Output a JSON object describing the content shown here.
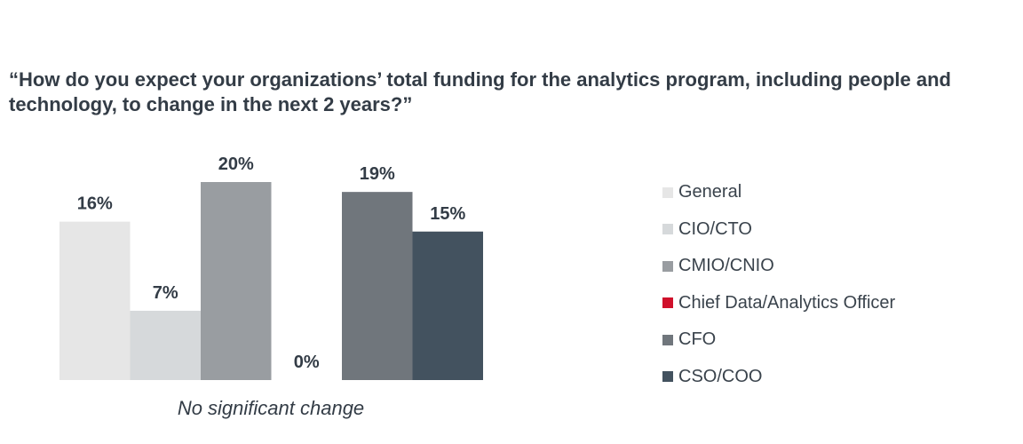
{
  "chart_data": {
    "type": "bar",
    "title": "“How do you expect your organizations’ total funding for the analytics program, including people and technology, to change in the next 2 years?”",
    "categories": [
      "No significant change"
    ],
    "series": [
      {
        "name": "General",
        "values": [
          16
        ],
        "label": "16%",
        "color": "#e6e6e6"
      },
      {
        "name": "CIO/CTO",
        "values": [
          7
        ],
        "label": "7%",
        "color": "#d6d9db"
      },
      {
        "name": "CMIO/CNIO",
        "values": [
          20
        ],
        "label": "20%",
        "color": "#999da1"
      },
      {
        "name": "Chief Data/Analytics Officer",
        "values": [
          0
        ],
        "label": "0%",
        "color": "#d0102b"
      },
      {
        "name": "CFO",
        "values": [
          19
        ],
        "label": "19%",
        "color": "#70767c"
      },
      {
        "name": "CSO/COO",
        "values": [
          15
        ],
        "label": "15%",
        "color": "#43525f"
      }
    ],
    "ylim": [
      0,
      20
    ],
    "grid": false,
    "legend": "right"
  }
}
